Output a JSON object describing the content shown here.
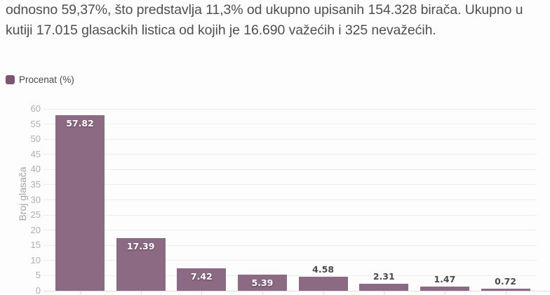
{
  "article": {
    "text": "odnosno 59,37%, što predstavlja 11,3% od ukupno upisanih 154.328 birača. Ukupno u kutiji 17.015 glasackih listica od kojih je 16.690 važećih i 325 nevažećih."
  },
  "legend": {
    "label": "Procenat (%)",
    "color": "#7d5472"
  },
  "chart_data": {
    "type": "bar",
    "series": [
      {
        "name": "Procenat (%)",
        "values": [
          57.82,
          17.39,
          7.42,
          5.39,
          4.58,
          2.31,
          1.47,
          0.72
        ]
      }
    ],
    "data_labels": [
      "57.82",
      "17.39",
      "7.42",
      "5.39",
      "4.58",
      "2.31",
      "1.47",
      "0.72"
    ],
    "title": "",
    "xlabel": "",
    "ylabel": "Broj glasača",
    "ylim": [
      0,
      60
    ],
    "yticks": [
      0,
      5,
      10,
      15,
      20,
      25,
      30,
      35,
      40,
      45,
      50,
      55,
      60
    ],
    "grid": true,
    "legend_position": "top-left",
    "x_axis_labels_visible": false,
    "bar_color": "#8d6a83",
    "label_inside_threshold": 5
  }
}
